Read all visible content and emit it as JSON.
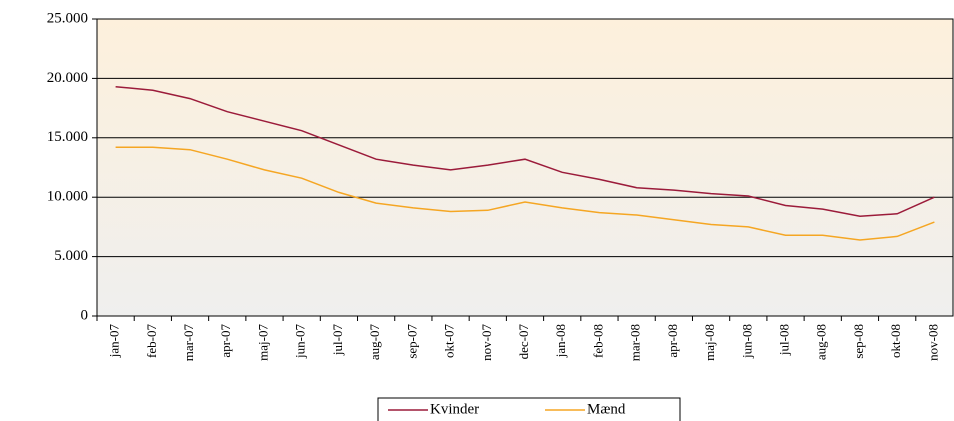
{
  "chart_data": {
    "type": "line",
    "categories": [
      "jan-07",
      "feb-07",
      "mar-07",
      "apr-07",
      "maj-07",
      "jun-07",
      "jul-07",
      "aug-07",
      "sep-07",
      "okt-07",
      "nov-07",
      "dec-07",
      "jan-08",
      "feb-08",
      "mar-08",
      "apr-08",
      "maj-08",
      "jun-08",
      "jul-08",
      "aug-08",
      "sep-08",
      "okt-08",
      "nov-08"
    ],
    "series": [
      {
        "name": "Kvinder",
        "color": "#9b1b3a",
        "values": [
          19300,
          19000,
          18300,
          17200,
          16400,
          15600,
          14400,
          13200,
          12700,
          12300,
          12700,
          13200,
          12100,
          11500,
          10800,
          10600,
          10300,
          10100,
          9300,
          9000,
          8400,
          8600,
          10000
        ]
      },
      {
        "name": "Mænd",
        "color": "#f5a623",
        "values": [
          14200,
          14200,
          14000,
          13200,
          12300,
          11600,
          10400,
          9500,
          9100,
          8800,
          8900,
          9600,
          9100,
          8700,
          8500,
          8100,
          7700,
          7500,
          6800,
          6800,
          6400,
          6700,
          7900
        ]
      }
    ],
    "ylim": [
      0,
      25000
    ],
    "yticks": [
      0,
      {
        "value": 5000,
        "label": "5.000"
      },
      {
        "value": 10000,
        "label": "10.000"
      },
      {
        "value": 15000,
        "label": "15.000"
      },
      {
        "value": 20000,
        "label": "20.000"
      },
      {
        "value": 25000,
        "label": "25.000"
      }
    ],
    "grid": true
  }
}
